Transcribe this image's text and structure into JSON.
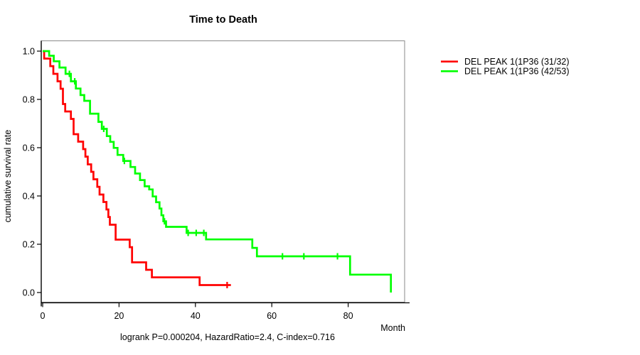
{
  "chart_data": {
    "type": "line",
    "subtype": "kaplan-meier-step",
    "title": "Time to Death",
    "xlabel": "Month",
    "ylabel": "cumulative survival rate",
    "annotation": "logrank P=0.000204, HazardRatio=2.4, C-index=0.716",
    "xlim": [
      0,
      95
    ],
    "ylim": [
      0.0,
      1.0
    ],
    "xticks": [
      0,
      20,
      40,
      60,
      80
    ],
    "yticks": [
      0.0,
      0.2,
      0.4,
      0.6,
      0.8,
      1.0
    ],
    "grid": "off",
    "legend_position": "right-outside",
    "series": [
      {
        "name": "DEL PEAK  1(1P36 (31/32)",
        "color": "#ff0000",
        "group_size": "31/32",
        "points": [
          [
            0,
            1.0
          ],
          [
            0.4,
            0.969
          ],
          [
            2.0,
            0.938
          ],
          [
            2.8,
            0.906
          ],
          [
            3.9,
            0.875
          ],
          [
            4.7,
            0.844
          ],
          [
            5.3,
            0.781
          ],
          [
            5.9,
            0.75
          ],
          [
            7.4,
            0.719
          ],
          [
            8.1,
            0.656
          ],
          [
            9.3,
            0.625
          ],
          [
            10.6,
            0.594
          ],
          [
            11.2,
            0.563
          ],
          [
            11.8,
            0.531
          ],
          [
            12.7,
            0.5
          ],
          [
            13.3,
            0.469
          ],
          [
            14.3,
            0.438
          ],
          [
            14.9,
            0.406
          ],
          [
            15.9,
            0.375
          ],
          [
            16.7,
            0.344
          ],
          [
            17.2,
            0.313
          ],
          [
            17.6,
            0.281
          ],
          [
            19.1,
            0.219
          ],
          [
            22.8,
            0.188
          ],
          [
            23.4,
            0.125
          ],
          [
            27.1,
            0.094
          ],
          [
            28.6,
            0.063
          ],
          [
            41.1,
            0.031
          ],
          [
            49.3,
            0.031
          ]
        ],
        "censored": [
          [
            48.3,
            0.031
          ]
        ]
      },
      {
        "name": "DEL PEAK  1(1P36 (42/53)",
        "color": "#00ff00",
        "group_size": "42/53",
        "points": [
          [
            0,
            1.0
          ],
          [
            1.7,
            0.981
          ],
          [
            2.9,
            0.958
          ],
          [
            4.4,
            0.932
          ],
          [
            6.0,
            0.906
          ],
          [
            7.4,
            0.875
          ],
          [
            8.7,
            0.845
          ],
          [
            9.9,
            0.818
          ],
          [
            10.9,
            0.794
          ],
          [
            12.4,
            0.741
          ],
          [
            14.6,
            0.707
          ],
          [
            15.5,
            0.678
          ],
          [
            16.8,
            0.648
          ],
          [
            17.7,
            0.624
          ],
          [
            18.6,
            0.599
          ],
          [
            19.6,
            0.57
          ],
          [
            21.1,
            0.545
          ],
          [
            23.0,
            0.52
          ],
          [
            24.2,
            0.493
          ],
          [
            25.5,
            0.466
          ],
          [
            26.7,
            0.44
          ],
          [
            27.9,
            0.427
          ],
          [
            28.8,
            0.398
          ],
          [
            29.7,
            0.374
          ],
          [
            30.6,
            0.348
          ],
          [
            31.1,
            0.32
          ],
          [
            31.6,
            0.295
          ],
          [
            32.3,
            0.272
          ],
          [
            37.7,
            0.247
          ],
          [
            42.8,
            0.22
          ],
          [
            54.9,
            0.185
          ],
          [
            56.1,
            0.15
          ],
          [
            80.5,
            0.074
          ],
          [
            91.2,
            0.0
          ]
        ],
        "censored": [
          [
            7.0,
            0.906
          ],
          [
            8.4,
            0.875
          ],
          [
            16.0,
            0.678
          ],
          [
            21.4,
            0.545
          ],
          [
            31.9,
            0.295
          ],
          [
            38.1,
            0.247
          ],
          [
            40.2,
            0.247
          ],
          [
            42.2,
            0.247
          ],
          [
            62.8,
            0.15
          ],
          [
            68.4,
            0.15
          ],
          [
            77.2,
            0.15
          ]
        ]
      }
    ]
  }
}
